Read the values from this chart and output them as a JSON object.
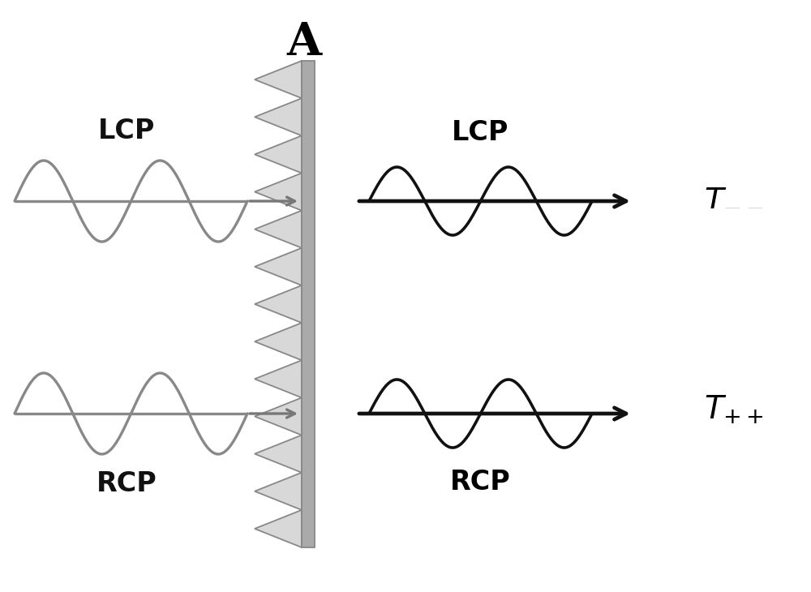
{
  "title": "A",
  "title_fontsize": 40,
  "bg_color": "#ffffff",
  "wave_color_left": "#888888",
  "wave_color_right": "#111111",
  "arrow_color_left": "#777777",
  "arrow_color_right": "#111111",
  "label_color_left": "#111111",
  "label_color_right": "#111111",
  "structure_fill": "#d8d8d8",
  "structure_edge": "#888888",
  "bar_fill": "#aaaaaa",
  "bar_edge": "#888888",
  "label_fontsize": 24,
  "math_fontsize": 28,
  "n_triangles": 13,
  "lcp_left": "LCP",
  "rcp_left": "RCP",
  "lcp_right": "LCP",
  "rcp_right": "RCP"
}
